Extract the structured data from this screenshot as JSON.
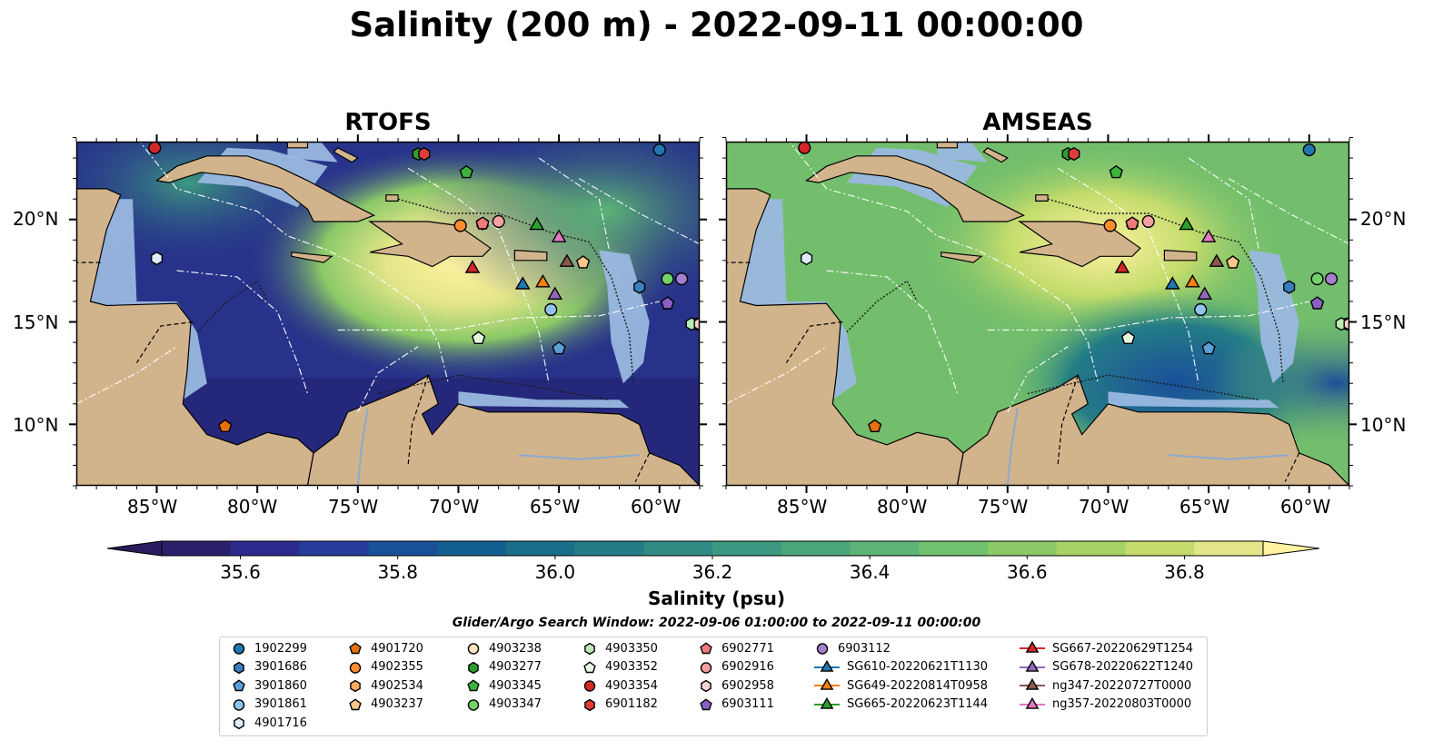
{
  "title": "Salinity (200 m) - 2022-09-11 00:00:00",
  "panels": [
    {
      "name": "RTOFS"
    },
    {
      "name": "AMSEAS"
    }
  ],
  "lon_labels": [
    "85°W",
    "80°W",
    "75°W",
    "70°W",
    "65°W",
    "60°W"
  ],
  "lat_labels": [
    "20°N",
    "15°N",
    "10°N"
  ],
  "colorbar": {
    "label": "Salinity (psu)",
    "ticks": [
      "35.6",
      "35.8",
      "36.0",
      "36.2",
      "36.4",
      "36.6",
      "36.8"
    ],
    "colors": [
      "#2b1e6b",
      "#2c2a8c",
      "#253c9c",
      "#1a4f9a",
      "#135f91",
      "#1a6d8a",
      "#247c86",
      "#2f8a83",
      "#3c9880",
      "#4ba67b",
      "#5cb476",
      "#71c06d",
      "#8bc967",
      "#a6d363",
      "#c3dc6c",
      "#e4e68a"
    ],
    "under_color": "#2b1b5e",
    "over_color": "#fff2a0"
  },
  "map_colors": {
    "land": "#d2b48c",
    "shallow": "#9ab8e0",
    "rtofs_deep": "#27338a",
    "amseas_base": "#72be6c"
  },
  "search_window": "Glider/Argo Search Window: 2022-09-06 01:00:00 to 2022-09-11 00:00:00",
  "legend": [
    {
      "label": "1902299",
      "marker": "circle",
      "color": "#1f77b4"
    },
    {
      "label": "3901686",
      "marker": "hexagon",
      "color": "#3b7ec0"
    },
    {
      "label": "3901860",
      "marker": "pentagon",
      "color": "#5a9fd6"
    },
    {
      "label": "3901861",
      "marker": "circle",
      "color": "#8fc3ea"
    },
    {
      "label": "4901716",
      "marker": "hexagon",
      "color": "#ddeefa"
    },
    {
      "label": "4901720",
      "marker": "pentagon",
      "color": "#e6700d"
    },
    {
      "label": "4902355",
      "marker": "circle",
      "color": "#ff8d2e"
    },
    {
      "label": "4902534",
      "marker": "hexagon",
      "color": "#ffaa5c"
    },
    {
      "label": "4903237",
      "marker": "pentagon",
      "color": "#ffc78a"
    },
    {
      "label": "4903238",
      "marker": "circle",
      "color": "#ffe4c2"
    },
    {
      "label": "4903350",
      "marker": "hexagon",
      "color": "#b9ecb0"
    },
    {
      "label": "4903277",
      "marker": "hexagon",
      "color": "#2ca02c"
    },
    {
      "label": "4903345",
      "marker": "pentagon",
      "color": "#3cb43c"
    },
    {
      "label": "4903347",
      "marker": "circle",
      "color": "#74d16a"
    },
    {
      "label": "4903352",
      "marker": "pentagon",
      "color": "#e6f7e0"
    },
    {
      "label": "4903354",
      "marker": "circle",
      "color": "#d62728"
    },
    {
      "label": "6901182",
      "marker": "hexagon",
      "color": "#e03c3c"
    },
    {
      "label": "6902771",
      "marker": "pentagon",
      "color": "#f07a7a"
    },
    {
      "label": "6902916",
      "marker": "circle",
      "color": "#f5a0a0"
    },
    {
      "label": "6902958",
      "marker": "hexagon",
      "color": "#fcd1d1"
    },
    {
      "label": "6903111",
      "marker": "pentagon",
      "color": "#8a5fc4"
    },
    {
      "label": "6903112",
      "marker": "circle",
      "color": "#a47fd0"
    },
    {
      "label": "SG610-20220621T1130",
      "marker": "triangle-line",
      "color": "#1f77b4"
    },
    {
      "label": "SG649-20220814T0958",
      "marker": "triangle-line",
      "color": "#ff7f0e"
    },
    {
      "label": "SG665-20220623T1144",
      "marker": "triangle-line",
      "color": "#2ca02c"
    },
    {
      "label": "SG667-20220629T1254",
      "marker": "triangle-line",
      "color": "#d62728"
    },
    {
      "label": "SG678-20220622T1240",
      "marker": "triangle-line",
      "color": "#9467bd"
    },
    {
      "label": "ng347-20220727T0000",
      "marker": "triangle-line",
      "color": "#8c564b"
    },
    {
      "label": "ng357-20220803T0000",
      "marker": "triangle-line",
      "color": "#e377c2"
    }
  ],
  "markers": [
    {
      "id": "1902299",
      "lon": -60.0,
      "lat": 23.4
    },
    {
      "id": "3901686",
      "lon": -61.0,
      "lat": 16.7
    },
    {
      "id": "3901860",
      "lon": -65.0,
      "lat": 13.7
    },
    {
      "id": "3901861",
      "lon": -65.4,
      "lat": 15.6
    },
    {
      "id": "4901716",
      "lon": -85.0,
      "lat": 18.1
    },
    {
      "id": "4901720",
      "lon": -81.6,
      "lat": 9.9
    },
    {
      "id": "4902355",
      "lon": -69.9,
      "lat": 19.7
    },
    {
      "id": "4902534",
      "lon": -68.8,
      "lat": 19.8
    },
    {
      "id": "4903237",
      "lon": -63.8,
      "lat": 17.9
    },
    {
      "id": "4903238",
      "lon": -58.1,
      "lat": 14.9
    },
    {
      "id": "4903350",
      "lon": -58.4,
      "lat": 14.9
    },
    {
      "id": "4903277",
      "lon": -72.0,
      "lat": 23.2
    },
    {
      "id": "4903345",
      "lon": -69.6,
      "lat": 22.3
    },
    {
      "id": "4903347",
      "lon": -59.6,
      "lat": 17.1
    },
    {
      "id": "4903352",
      "lon": -69.0,
      "lat": 14.2
    },
    {
      "id": "4903354",
      "lon": -85.1,
      "lat": 23.5
    },
    {
      "id": "6901182",
      "lon": -71.7,
      "lat": 23.2
    },
    {
      "id": "6902771",
      "lon": -68.8,
      "lat": 19.8
    },
    {
      "id": "6902916",
      "lon": -68.0,
      "lat": 19.9
    },
    {
      "id": "6902958",
      "lon": -58.0,
      "lat": 14.9
    },
    {
      "id": "6903111",
      "lon": -59.6,
      "lat": 15.9
    },
    {
      "id": "6903112",
      "lon": -58.9,
      "lat": 17.1
    },
    {
      "id": "SG610-20220621T1130",
      "lon": -66.8,
      "lat": 16.8
    },
    {
      "id": "SG649-20220814T0958",
      "lon": -65.8,
      "lat": 16.9
    },
    {
      "id": "SG665-20220623T1144",
      "lon": -66.1,
      "lat": 19.7
    },
    {
      "id": "SG667-20220629T1254",
      "lon": -69.3,
      "lat": 17.6
    },
    {
      "id": "SG678-20220622T1240",
      "lon": -65.2,
      "lat": 16.3
    },
    {
      "id": "ng347-20220727T0000",
      "lon": -64.6,
      "lat": 17.9
    },
    {
      "id": "ng357-20220803T0000",
      "lon": -65.0,
      "lat": 19.1
    }
  ]
}
